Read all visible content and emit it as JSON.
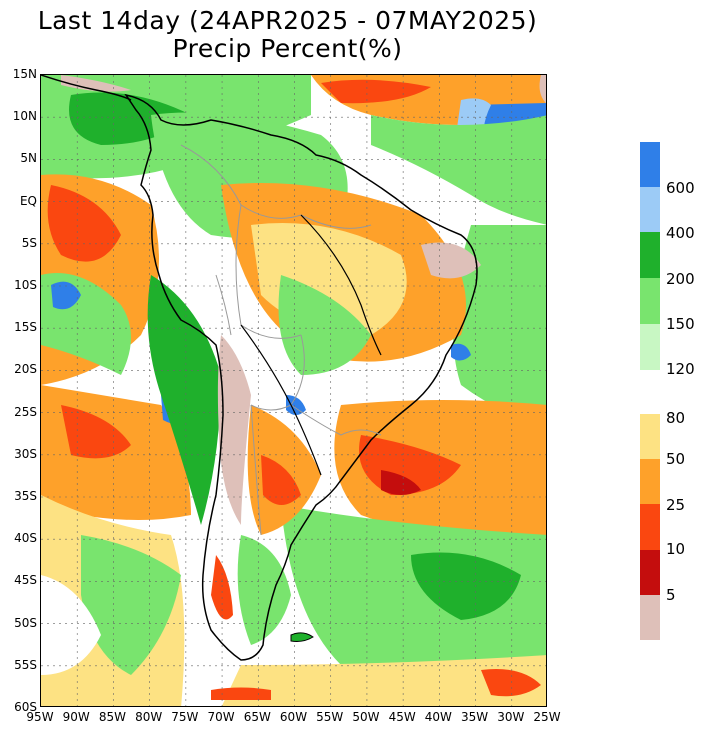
{
  "title": {
    "line1": "Last 14day (24APR2025 - 07MAY2025)",
    "line2": "Precip Percent(%)"
  },
  "axes": {
    "lat_labels": [
      "15N",
      "10N",
      "5N",
      "EQ",
      "5S",
      "10S",
      "15S",
      "20S",
      "25S",
      "30S",
      "35S",
      "40S",
      "45S",
      "50S",
      "55S",
      "60S"
    ],
    "lon_labels": [
      "95W",
      "90W",
      "85W",
      "80W",
      "75W",
      "70W",
      "65W",
      "60W",
      "55W",
      "50W",
      "45W",
      "40W",
      "35W",
      "30W",
      "25W"
    ]
  },
  "legend": {
    "labels": [
      "600",
      "400",
      "200",
      "150",
      "120",
      "80",
      "50",
      "25",
      "10",
      "5"
    ],
    "colors": {
      "above600": "#2f7fe8",
      "400_600": "#9ccbf6",
      "200_400": "#1fb02c",
      "150_200": "#79e46e",
      "120_150": "#c8f7c3",
      "80_120": "#ffffff",
      "50_80": "#fde283",
      "25_50": "#fea12a",
      "10_25": "#fa4710",
      "5_10": "#c40d0d",
      "below5": "#dec0b9"
    }
  },
  "map_colors": {
    "land_outline": "#000000",
    "borders": "#999999",
    "grid": "#666666"
  }
}
